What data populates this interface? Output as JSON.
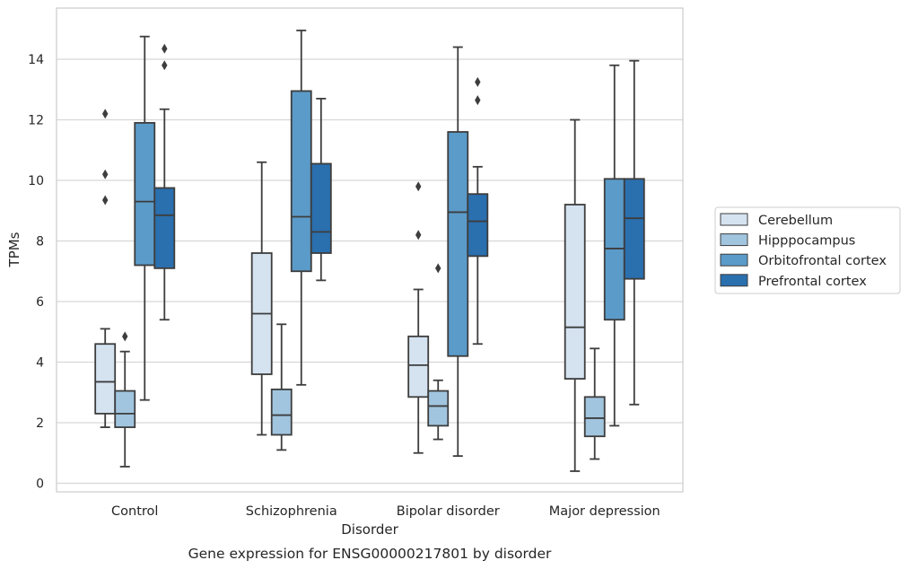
{
  "chart_data": {
    "type": "box",
    "title": "",
    "caption": "Gene expression for ENSG00000217801 by disorder",
    "xlabel": "Disorder",
    "ylabel": "TPMs",
    "ylim": [
      -0.3,
      15.9
    ],
    "yticks": [
      0,
      2,
      4,
      6,
      8,
      10,
      12,
      14
    ],
    "grid": "horizontal",
    "legend_position": "right",
    "categories": [
      "Control",
      "Schizophrenia",
      "Bipolar disorder",
      "Major depression"
    ],
    "series": [
      {
        "name": "Cerebellum",
        "color": "#d5e3f1",
        "boxes": [
          {
            "whisker_low": 1.85,
            "q1": 2.3,
            "median": 3.35,
            "q3": 4.6,
            "whisker_high": 5.1,
            "outliers": [
              9.35,
              10.2,
              12.2
            ]
          },
          {
            "whisker_low": 1.6,
            "q1": 3.6,
            "median": 5.6,
            "q3": 7.6,
            "whisker_high": 10.6,
            "outliers": []
          },
          {
            "whisker_low": 1.0,
            "q1": 2.85,
            "median": 3.9,
            "q3": 4.85,
            "whisker_high": 6.4,
            "outliers": [
              8.2,
              9.8
            ]
          },
          {
            "whisker_low": 0.4,
            "q1": 3.45,
            "median": 5.15,
            "q3": 9.2,
            "whisker_high": 12.0,
            "outliers": []
          }
        ]
      },
      {
        "name": "Hipppocampus",
        "color": "#a1c5df",
        "boxes": [
          {
            "whisker_low": 0.55,
            "q1": 1.85,
            "median": 2.3,
            "q3": 3.05,
            "whisker_high": 4.35,
            "outliers": [
              4.85
            ]
          },
          {
            "whisker_low": 1.1,
            "q1": 1.6,
            "median": 2.25,
            "q3": 3.1,
            "whisker_high": 5.25,
            "outliers": []
          },
          {
            "whisker_low": 1.45,
            "q1": 1.9,
            "median": 2.55,
            "q3": 3.05,
            "whisker_high": 3.4,
            "outliers": [
              7.1
            ]
          },
          {
            "whisker_low": 0.8,
            "q1": 1.55,
            "median": 2.15,
            "q3": 2.85,
            "whisker_high": 4.45,
            "outliers": []
          }
        ]
      },
      {
        "name": "Orbitofrontal cortex",
        "color": "#5b9bc9",
        "boxes": [
          {
            "whisker_low": 2.75,
            "q1": 7.2,
            "median": 9.3,
            "q3": 11.9,
            "whisker_high": 14.75,
            "outliers": []
          },
          {
            "whisker_low": 3.25,
            "q1": 7.0,
            "median": 8.8,
            "q3": 12.95,
            "whisker_high": 14.95,
            "outliers": []
          },
          {
            "whisker_low": 0.9,
            "q1": 4.2,
            "median": 8.95,
            "q3": 11.6,
            "whisker_high": 14.4,
            "outliers": []
          },
          {
            "whisker_low": 1.9,
            "q1": 5.4,
            "median": 7.75,
            "q3": 10.05,
            "whisker_high": 13.8,
            "outliers": []
          }
        ]
      },
      {
        "name": "Prefrontal cortex",
        "color": "#2a6fae",
        "boxes": [
          {
            "whisker_low": 5.4,
            "q1": 7.1,
            "median": 8.85,
            "q3": 9.75,
            "whisker_high": 12.35,
            "outliers": [
              13.8,
              14.35
            ]
          },
          {
            "whisker_low": 6.7,
            "q1": 7.6,
            "median": 8.3,
            "q3": 10.55,
            "whisker_high": 12.7,
            "outliers": []
          },
          {
            "whisker_low": 4.6,
            "q1": 7.5,
            "median": 8.65,
            "q3": 9.55,
            "whisker_high": 10.45,
            "outliers": [
              12.65,
              13.25
            ]
          },
          {
            "whisker_low": 2.6,
            "q1": 6.75,
            "median": 8.75,
            "q3": 10.05,
            "whisker_high": 13.95,
            "outliers": []
          }
        ]
      }
    ]
  }
}
